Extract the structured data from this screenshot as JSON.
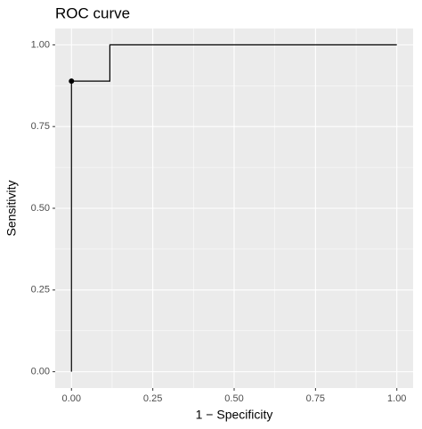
{
  "chart_data": {
    "type": "line",
    "title": "ROC curve",
    "x_label": "1 − Specificity",
    "y_label": "Sensitivity",
    "series": [
      {
        "x": [
          0,
          0,
          0.118,
          0.118,
          1
        ],
        "values": [
          0,
          0.889,
          0.889,
          1,
          1
        ],
        "color": "#000000"
      }
    ],
    "points": {
      "x": [
        0
      ],
      "values": [
        0.889
      ],
      "color": "#000000"
    },
    "step": true,
    "xlim": [
      -0.05,
      1.05
    ],
    "ylim": [
      -0.05,
      1.05
    ],
    "xticks": [
      {
        "value": 0,
        "label": "0.00"
      },
      {
        "value": 0.25,
        "label": "0.25"
      },
      {
        "value": 0.5,
        "label": "0.50"
      },
      {
        "value": 0.75,
        "label": "0.75"
      },
      {
        "value": 1,
        "label": "1.00"
      }
    ],
    "yticks": [
      {
        "value": 0,
        "label": "0.00"
      },
      {
        "value": 0.25,
        "label": "0.25"
      },
      {
        "value": 0.5,
        "label": "0.50"
      },
      {
        "value": 0.75,
        "label": "0.75"
      },
      {
        "value": 1,
        "label": "1.00"
      }
    ],
    "grid": true
  }
}
